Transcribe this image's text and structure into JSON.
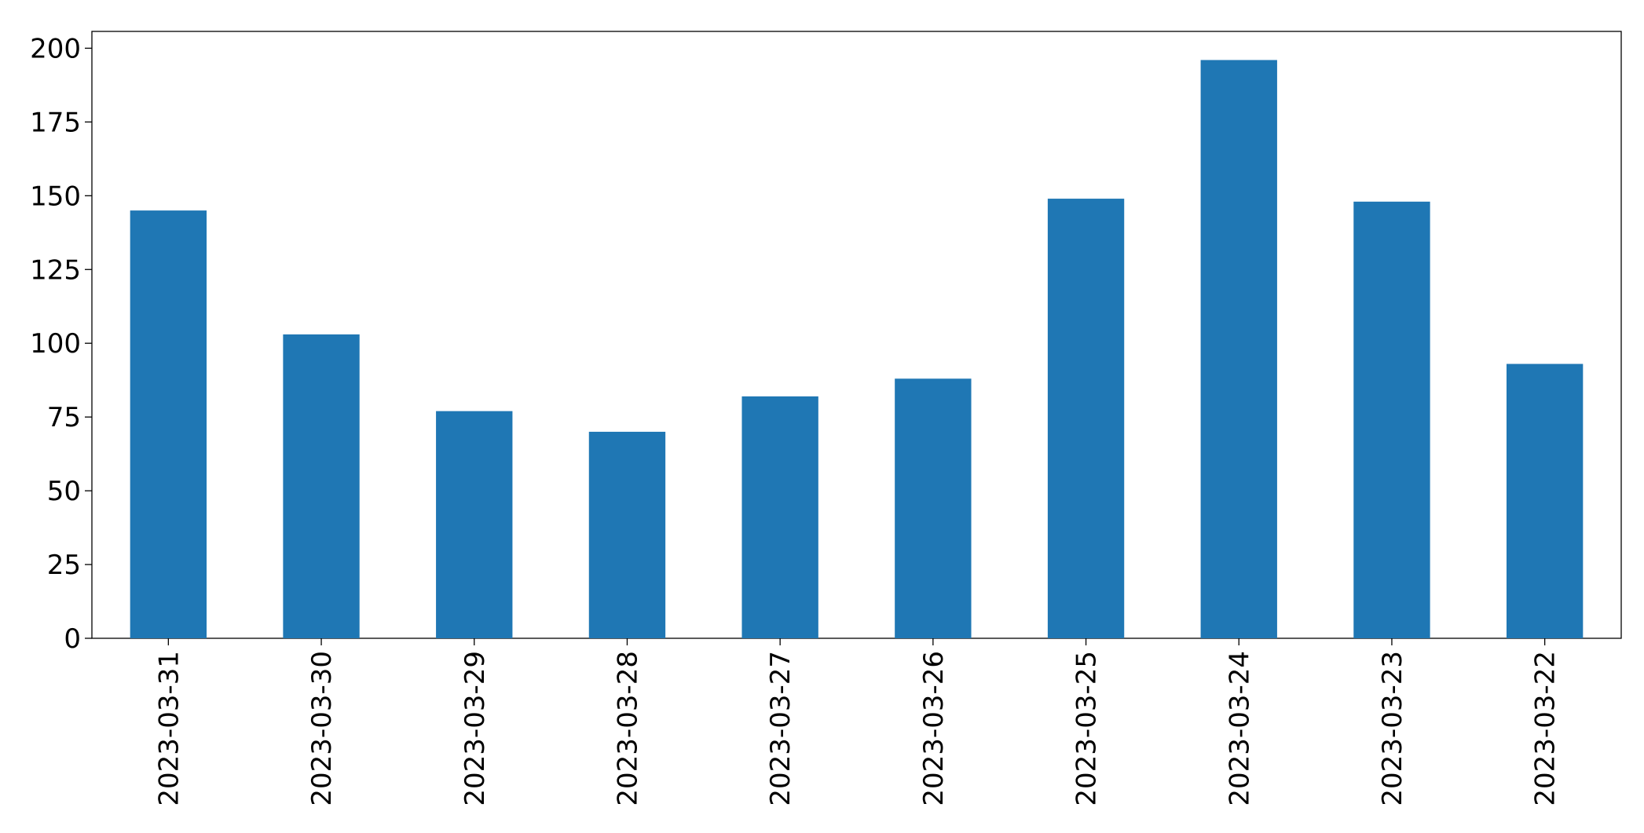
{
  "chart_data": {
    "type": "bar",
    "categories": [
      "2023-03-31",
      "2023-03-30",
      "2023-03-29",
      "2023-03-28",
      "2023-03-27",
      "2023-03-26",
      "2023-03-25",
      "2023-03-24",
      "2023-03-23",
      "2023-03-22"
    ],
    "values": [
      145,
      103,
      77,
      70,
      82,
      88,
      149,
      196,
      148,
      93
    ],
    "color": "#1f77b4",
    "ylim": [
      0,
      205.7
    ],
    "yticks": [
      0,
      25,
      50,
      75,
      100,
      125,
      150,
      175,
      200
    ],
    "grid": false
  }
}
